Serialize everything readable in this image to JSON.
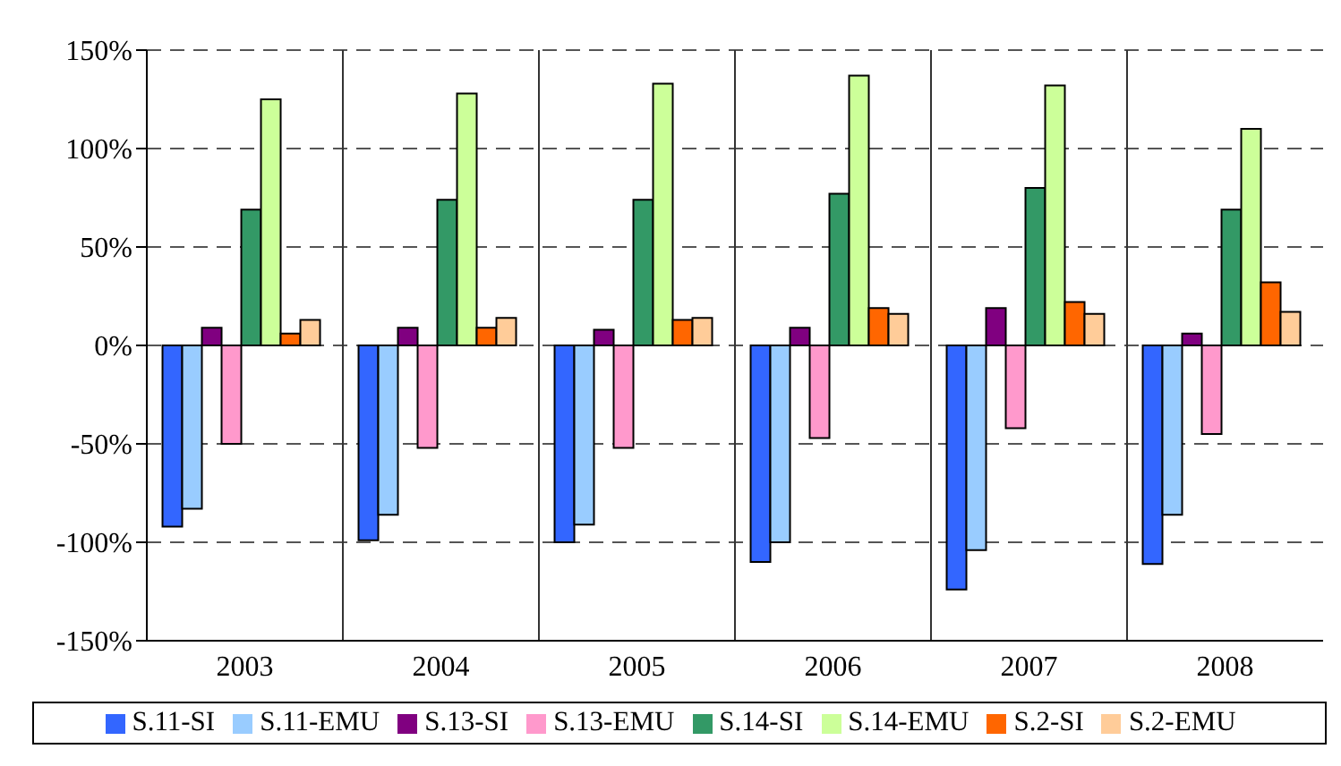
{
  "chart_data": {
    "type": "bar",
    "categories": [
      "2003",
      "2004",
      "2005",
      "2006",
      "2007",
      "2008"
    ],
    "series": [
      {
        "name": "S.11-SI",
        "color": "#3366ff",
        "values": [
          -92,
          -99,
          -100,
          -110,
          -124,
          -111
        ]
      },
      {
        "name": "S.11-EMU",
        "color": "#99ccff",
        "values": [
          -83,
          -86,
          -91,
          -100,
          -104,
          -86
        ]
      },
      {
        "name": "S.13-SI",
        "color": "#800080",
        "values": [
          9,
          9,
          8,
          9,
          19,
          6
        ]
      },
      {
        "name": "S.13-EMU",
        "color": "#ff99cc",
        "values": [
          -50,
          -52,
          -52,
          -47,
          -42,
          -45
        ]
      },
      {
        "name": "S.14-SI",
        "color": "#339966",
        "values": [
          69,
          74,
          74,
          77,
          80,
          69
        ]
      },
      {
        "name": "S.14-EMU",
        "color": "#ccff99",
        "values": [
          125,
          128,
          133,
          137,
          132,
          110
        ]
      },
      {
        "name": "S.2-SI",
        "color": "#ff6600",
        "values": [
          6,
          9,
          13,
          19,
          22,
          32
        ]
      },
      {
        "name": "S.2-EMU",
        "color": "#ffcc99",
        "values": [
          13,
          14,
          14,
          16,
          16,
          17
        ]
      }
    ],
    "ylim": [
      -150,
      150
    ],
    "yticks": [
      {
        "value": -150,
        "label": "-150%"
      },
      {
        "value": -100,
        "label": "-100%"
      },
      {
        "value": -50,
        "label": "-50%"
      },
      {
        "value": 0,
        "label": "0%"
      },
      {
        "value": 50,
        "label": "50%"
      },
      {
        "value": 100,
        "label": "100%"
      },
      {
        "value": 150,
        "label": "150%"
      }
    ],
    "grid": true,
    "legend": "bottom"
  }
}
